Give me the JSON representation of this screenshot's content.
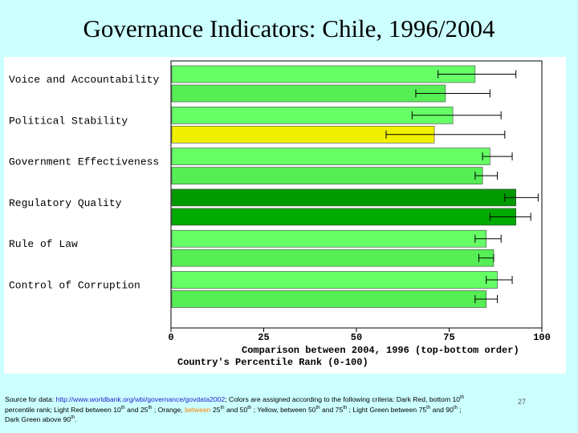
{
  "title": "Governance Indicators:  Chile, 1996/2004",
  "chart_data": {
    "type": "bar",
    "orientation": "horizontal",
    "categories": [
      "Voice and Accountability",
      "Political Stability",
      "Government Effectiveness",
      "Regulatory Quality",
      "Rule of Law",
      "Control of Corruption"
    ],
    "series": [
      {
        "year": "2004",
        "values": [
          82,
          76,
          86,
          93,
          85,
          88
        ],
        "err_low": [
          72,
          65,
          84,
          90,
          82,
          85
        ],
        "err_high": [
          93,
          89,
          92,
          99,
          89,
          92
        ],
        "colors": [
          "#66ff66",
          "#66ff66",
          "#66ff66",
          "#009900",
          "#66ff66",
          "#66ff66"
        ]
      },
      {
        "year": "1996",
        "values": [
          74,
          71,
          84,
          93,
          87,
          85
        ],
        "err_low": [
          66,
          58,
          82,
          86,
          83,
          82
        ],
        "err_high": [
          86,
          90,
          88,
          97,
          87,
          88
        ],
        "colors": [
          "#55ee55",
          "#f0f000",
          "#55ee55",
          "#00aa00",
          "#55ee55",
          "#55ee55"
        ]
      }
    ],
    "xlim": [
      0,
      100
    ],
    "xticks": [
      0,
      25,
      50,
      75,
      100
    ],
    "xlabel_line1": "Comparison between 2004, 1996 (top-bottom order)",
    "xlabel_line2": "Country's Percentile Rank (0-100)",
    "grid": false,
    "legend": "none"
  },
  "footer": {
    "source_label": "Source for data: ",
    "source_url": "http://www.worldbank.org/wbi/governance/govdata2002",
    "criteria": ";  Colors are assigned according to the following criteria:  Dark Red, bottom 10",
    "th1": "th",
    "line2a": "percentile rank; Light Red between 10",
    "th2": "th",
    "line2b": " and 25",
    "th3": "th",
    "line2c": " ; Orange, ",
    "between": "between",
    "line2d": " 25",
    "th4": "th",
    "line2e": "  and 50",
    "th5": "th",
    "line2f": " ; Yellow, between 50",
    "th6": "th",
    "line2g": " and 75",
    "th7": "th",
    "line2h": " ; Light  Green between 75",
    "th8": "th",
    "line2i": "  and 90",
    "th9": "th",
    "line2j": "  ;",
    "line3a": "Dark Green above 90",
    "th10": "th",
    "line3b": ".",
    "slide_number": "27"
  }
}
